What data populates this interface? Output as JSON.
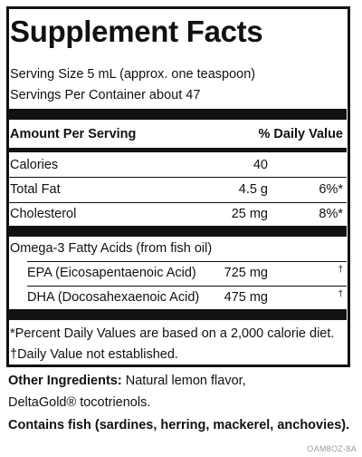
{
  "title": "Supplement Facts",
  "serving_size": "Serving Size 5 mL (approx. one teaspoon)",
  "servings_per_container": "Servings Per Container about 47",
  "header": {
    "amount_label": "Amount Per Serving",
    "dv_label": "% Daily Value"
  },
  "rows": [
    {
      "name": "Calories",
      "amount": "40",
      "dv": ""
    },
    {
      "name": "Total Fat",
      "amount": "4.5 g",
      "dv": "6%*"
    },
    {
      "name": "Cholesterol",
      "amount": "25 mg",
      "dv": "8%*"
    }
  ],
  "omega": {
    "heading": "Omega-3 Fatty Acids (from fish oil)",
    "items": [
      {
        "name": "EPA (Eicosapentaenoic Acid)",
        "amount": "725 mg",
        "dv": "†"
      },
      {
        "name": "DHA (Docosahexaenoic Acid)",
        "amount": "475 mg",
        "dv": "†"
      }
    ]
  },
  "footnotes": {
    "percent": "*Percent Daily Values are based on a 2,000 calorie diet.",
    "dagger": "†Daily Value not established."
  },
  "other_ingredients": {
    "label": "Other Ingredients:",
    "line1": " Natural lemon flavor,",
    "line2": "DeltaGold® tocotrienols."
  },
  "allergen": "Contains fish (sardines, herring, mackerel, anchovies).",
  "code": "OAM8OZ-8A"
}
